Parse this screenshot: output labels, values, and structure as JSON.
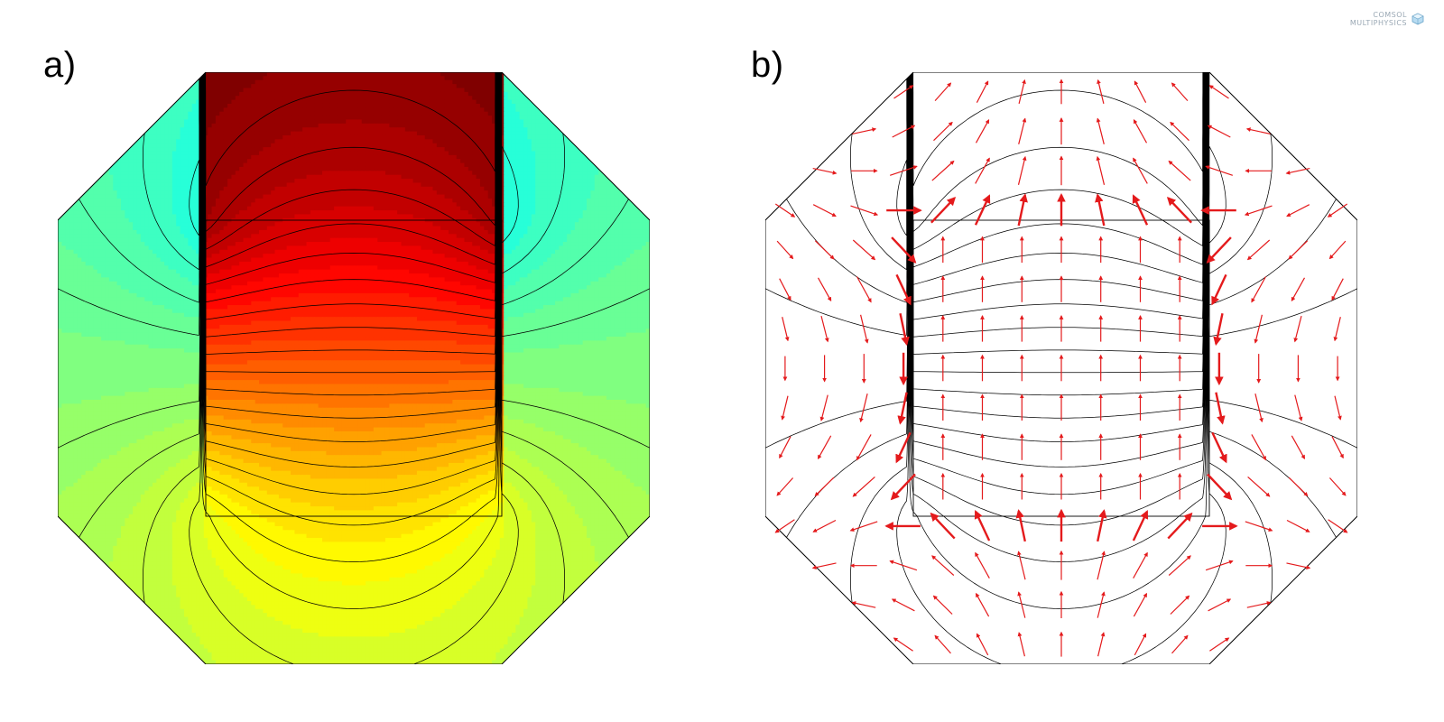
{
  "figure": {
    "panel_a_label": "a)",
    "panel_b_label": "b)"
  },
  "logo": {
    "line1": "COMSOL",
    "line2": "MULTIPHYSICS",
    "icon": "comsol-cube-icon"
  },
  "colors": {
    "contour_line": "#000000",
    "arrow": "#e41a1c",
    "domain_outline": "#000000",
    "colormap": "jet",
    "colormap_stops": [
      "#00008f",
      "#0000ff",
      "#00ffff",
      "#80ff80",
      "#ffff00",
      "#ff0000",
      "#800000"
    ]
  }
}
